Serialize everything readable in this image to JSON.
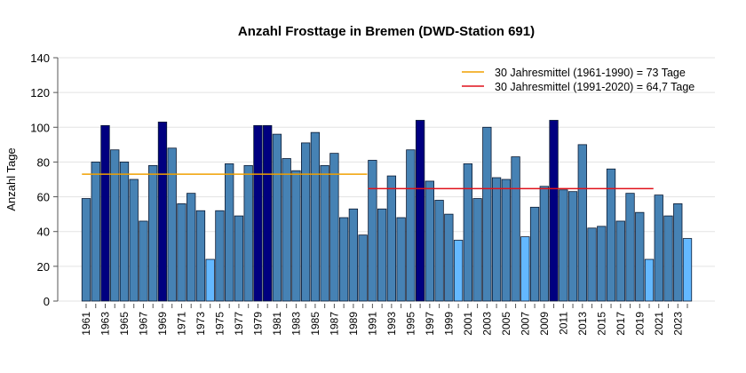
{
  "chart_data": {
    "type": "bar",
    "title": "Anzahl Frosttage in Bremen (DWD-Station 691)",
    "xlabel": "",
    "ylabel": "Anzahl Tage",
    "ylim": [
      0,
      140
    ],
    "yticks": [
      0,
      20,
      40,
      60,
      80,
      100,
      120,
      140
    ],
    "grid": true,
    "legend_position": "top-right",
    "categories": [
      1961,
      1962,
      1963,
      1964,
      1965,
      1966,
      1967,
      1968,
      1969,
      1970,
      1971,
      1972,
      1973,
      1974,
      1975,
      1976,
      1977,
      1978,
      1979,
      1980,
      1981,
      1982,
      1983,
      1984,
      1985,
      1986,
      1987,
      1988,
      1989,
      1990,
      1991,
      1992,
      1993,
      1994,
      1995,
      1996,
      1997,
      1998,
      1999,
      2000,
      2001,
      2002,
      2003,
      2004,
      2005,
      2006,
      2007,
      2008,
      2009,
      2010,
      2011,
      2012,
      2013,
      2014,
      2015,
      2016,
      2017,
      2018,
      2019,
      2020,
      2021,
      2022,
      2023,
      2024
    ],
    "values": [
      59,
      80,
      101,
      87,
      80,
      70,
      46,
      78,
      103,
      88,
      56,
      62,
      52,
      24,
      52,
      79,
      49,
      78,
      101,
      101,
      96,
      82,
      75,
      91,
      97,
      78,
      85,
      48,
      53,
      38,
      81,
      53,
      72,
      48,
      87,
      104,
      69,
      58,
      50,
      35,
      79,
      59,
      100,
      71,
      70,
      83,
      37,
      54,
      66,
      104,
      64,
      63,
      90,
      42,
      43,
      76,
      46,
      62,
      51,
      24,
      61,
      49,
      56,
      36
    ],
    "bar_color_class": [
      "n",
      "n",
      "h",
      "n",
      "n",
      "n",
      "n",
      "n",
      "h",
      "n",
      "n",
      "n",
      "n",
      "l",
      "n",
      "n",
      "n",
      "n",
      "h",
      "h",
      "n",
      "n",
      "n",
      "n",
      "n",
      "n",
      "n",
      "n",
      "n",
      "n",
      "n",
      "n",
      "n",
      "n",
      "n",
      "h",
      "n",
      "n",
      "n",
      "l",
      "n",
      "n",
      "n",
      "n",
      "n",
      "n",
      "l",
      "n",
      "n",
      "h",
      "n",
      "n",
      "n",
      "n",
      "n",
      "n",
      "n",
      "n",
      "n",
      "l",
      "n",
      "n",
      "n",
      "l"
    ],
    "colors": {
      "n": "#4682b4",
      "h": "#000080",
      "l": "#63b8ff",
      "edge": "#0a1a33"
    },
    "reference_lines": [
      {
        "label": "30 Jahresmittel (1961-1990) = 73 Tage",
        "value": 73,
        "from": 1961,
        "to": 1990,
        "color": "#f0a000"
      },
      {
        "label": "30 Jahresmittel (1991-2020) = 64,7 Tage",
        "value": 64.7,
        "from": 1991,
        "to": 2020,
        "color": "#e0101a"
      }
    ]
  }
}
